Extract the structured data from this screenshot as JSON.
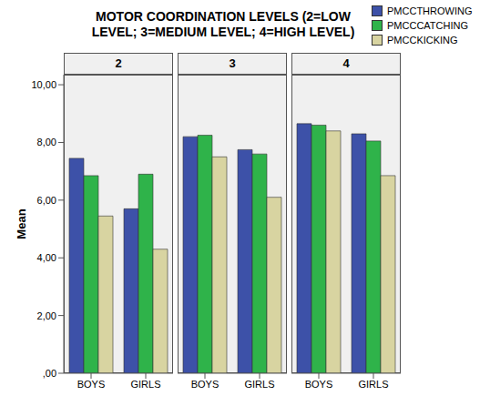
{
  "chart_data": {
    "type": "bar",
    "title": "MOTOR COORDINATION LEVELS (2=LOW LEVEL; 3=MEDIUM LEVEL; 4=HIGH LEVEL)",
    "y_label": "Mean",
    "panels": [
      "2",
      "3",
      "4"
    ],
    "categories": [
      "BOYS",
      "GIRLS"
    ],
    "series": [
      {
        "name": "PMCCTHROWING",
        "color": "#3d51a8",
        "values": [
          [
            7.45,
            5.7
          ],
          [
            8.2,
            7.75
          ],
          [
            8.65,
            8.3
          ]
        ]
      },
      {
        "name": "PMCCCATCHING",
        "color": "#2fb34a",
        "values": [
          [
            6.85,
            6.9
          ],
          [
            8.25,
            7.6
          ],
          [
            8.6,
            8.05
          ]
        ]
      },
      {
        "name": "PMCCKICKING",
        "color": "#d8d4a1",
        "values": [
          [
            5.45,
            4.3
          ],
          [
            7.5,
            6.1
          ],
          [
            8.4,
            6.85
          ]
        ]
      }
    ],
    "ylim": [
      0,
      10.35
    ],
    "yticks": [
      {
        "value": 0,
        "label": ",00"
      },
      {
        "value": 2,
        "label": "2,00"
      },
      {
        "value": 4,
        "label": "4,00"
      },
      {
        "value": 6,
        "label": "6,00"
      },
      {
        "value": 8,
        "label": "8,00"
      },
      {
        "value": 10,
        "label": "10,00"
      }
    ],
    "grid": false,
    "legend": "top-right"
  }
}
